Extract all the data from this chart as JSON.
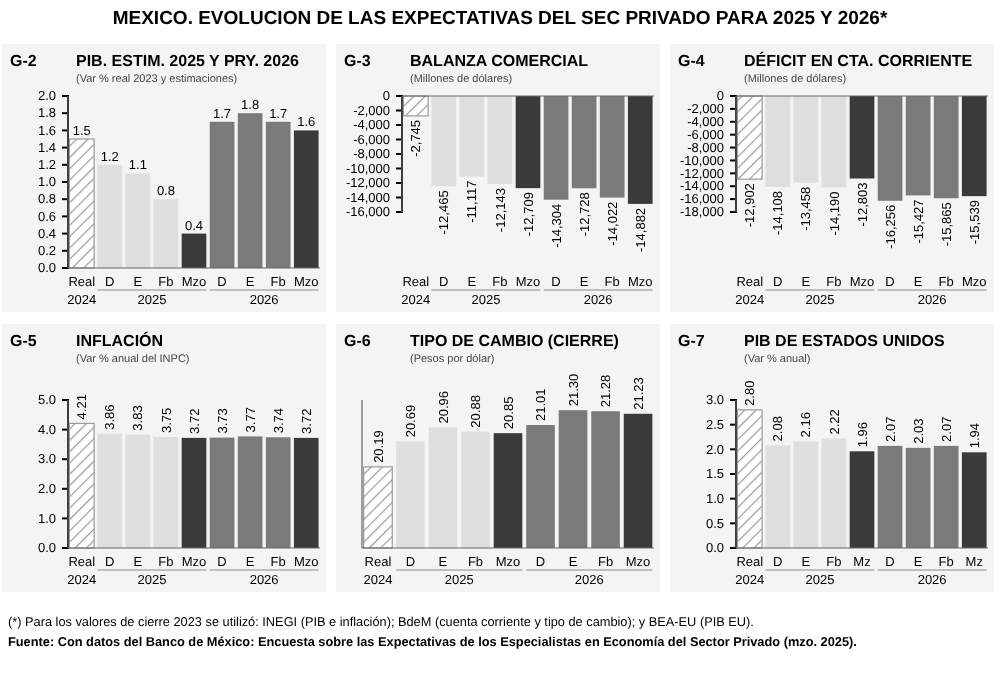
{
  "chart_data": [
    {
      "type": "other",
      "title": "MEXICO. EVOLUCION DE LAS EXPECTATIVAS DEL SEC PRIVADO PARA 2025 Y 2026*",
      "annotations": [
        "(*) Para los valores de cierre 2023 se utilizó: INEGI (PIB e inflación); BdeM (cuenta corriente y tipo de cambio); y BEA-EU (PIB EU).",
        "Fuente: Con datos del Banco de México: Encuesta sobre las Expectativas de los Especialistas en Economía del Sector Privado (mzo. 2025)."
      ]
    },
    {
      "type": "bar",
      "title": "PIB. ESTIM. 2025 Y PRY. 2026",
      "subtitle": "(Var % real 2023 y estimaciones)",
      "annotations": [
        "G-2",
        "2024",
        "2025",
        "2026"
      ],
      "categories": [
        "Real",
        "D",
        "E",
        "Fb",
        "Mzo",
        "D",
        "E",
        "Fb",
        "Mzo"
      ],
      "values": [
        1.5,
        1.2,
        1.1,
        0.8,
        0.4,
        1.7,
        1.8,
        1.7,
        1.6
      ],
      "value_labels": [
        "1.5",
        "1.2",
        "1.1",
        "0.8",
        "0.4",
        "1.7",
        "1.8",
        "1.7",
        "1.6"
      ],
      "colors": [
        "#9a9a9a",
        "#dedede",
        "#dedede",
        "#dedede",
        "#3a3a3a",
        "#7a7a7a",
        "#7a7a7a",
        "#7a7a7a",
        "#3a3a3a"
      ],
      "ylim": [
        0,
        2
      ],
      "yticks": [
        {
          "value": 0,
          "label": "0.0"
        },
        {
          "value": 0.2,
          "label": "0.2"
        },
        {
          "value": 0.4,
          "label": "0.4"
        },
        {
          "value": 0.6,
          "label": "0.6"
        },
        {
          "value": 0.8,
          "label": "0.8"
        },
        {
          "value": 1,
          "label": "1.0"
        },
        {
          "value": 1.2,
          "label": "1.2"
        },
        {
          "value": 1.4,
          "label": "1.4"
        },
        {
          "value": 1.6,
          "label": "1.6"
        },
        {
          "value": 1.8,
          "label": "1.8"
        },
        {
          "value": 2,
          "label": "2.0"
        }
      ]
    },
    {
      "type": "bar",
      "title": "BALANZA COMERCIAL",
      "subtitle": "(Millones de dólares)",
      "annotations": [
        "G-3",
        "2024",
        "2025",
        "2026"
      ],
      "categories": [
        "Real",
        "D",
        "E",
        "Fb",
        "Mzo",
        "D",
        "E",
        "Fb",
        "Mzo"
      ],
      "values": [
        -2745,
        -12465,
        -11117,
        -12143,
        -12709,
        -14304,
        -12728,
        -14022,
        -14882
      ],
      "value_labels": [
        "-2,745",
        "-12,465",
        "-11,117",
        "-12,143",
        "-12,709",
        "-14,304",
        "-12,728",
        "-14,022",
        "-14,882"
      ],
      "colors": [
        "#9a9a9a",
        "#dedede",
        "#dedede",
        "#dedede",
        "#3a3a3a",
        "#7a7a7a",
        "#7a7a7a",
        "#7a7a7a",
        "#3a3a3a"
      ],
      "ylim": [
        -16000,
        0
      ],
      "yticks": [
        {
          "value": -16000,
          "label": "-16,000"
        },
        {
          "value": -14000,
          "label": "-14,000"
        },
        {
          "value": -12000,
          "label": "-12,000"
        },
        {
          "value": -10000,
          "label": "-10,000"
        },
        {
          "value": -8000,
          "label": "-8,000"
        },
        {
          "value": -6000,
          "label": "-6,000"
        },
        {
          "value": -4000,
          "label": "-4,000"
        },
        {
          "value": -2000,
          "label": "-2,000"
        },
        0
      ]
    },
    {
      "type": "bar",
      "title": "DÉFICIT EN CTA. CORRIENTE",
      "subtitle": "(Millones de dólares)",
      "annotations": [
        "G-4",
        "2024",
        "2025",
        "2026"
      ],
      "categories": [
        "Real",
        "D",
        "E",
        "Fb",
        "Mzo",
        "D",
        "E",
        "Fb",
        "Mzo"
      ],
      "values": [
        -12902,
        -14108,
        -13458,
        -14190,
        -12803,
        -16256,
        -15427,
        -15865,
        -15539
      ],
      "value_labels": [
        "-12,902",
        "-14,108",
        "-13,458",
        "-14,190",
        "-12,803",
        "-16,256",
        "-15,427",
        "-15,865",
        "-15,539"
      ],
      "colors": [
        "#9a9a9a",
        "#dedede",
        "#dedede",
        "#dedede",
        "#3a3a3a",
        "#7a7a7a",
        "#7a7a7a",
        "#7a7a7a",
        "#3a3a3a"
      ],
      "ylim": [
        -18000,
        0
      ],
      "yticks": [
        {
          "value": -18000,
          "label": "-18,000"
        },
        {
          "value": -16000,
          "label": "-16,000"
        },
        {
          "value": -14000,
          "label": "-14,000"
        },
        {
          "value": -12000,
          "label": "-12,000"
        },
        {
          "value": -10000,
          "label": "-10,000"
        },
        {
          "value": -8000,
          "label": "-8,000"
        },
        {
          "value": -6000,
          "label": "-6,000"
        },
        {
          "value": -4000,
          "label": "-4,000"
        },
        {
          "value": -2000,
          "label": "-2,000"
        },
        0
      ]
    },
    {
      "type": "bar",
      "title": "INFLACIÓN",
      "subtitle": "(Var % anual del INPC)",
      "annotations": [
        "G-5",
        "2024",
        "2025",
        "2026"
      ],
      "categories": [
        "Real",
        "D",
        "E",
        "Fb",
        "Mzo",
        "D",
        "E",
        "Fb",
        "Mzo"
      ],
      "values": [
        4.21,
        3.86,
        3.83,
        3.75,
        3.72,
        3.73,
        3.77,
        3.74,
        3.72
      ],
      "value_labels": [
        "4.21",
        "3.86",
        "3.83",
        "3.75",
        "3.72",
        "3.73",
        "3.77",
        "3.74",
        "3.72"
      ],
      "colors": [
        "#9a9a9a",
        "#dedede",
        "#dedede",
        "#dedede",
        "#3a3a3a",
        "#7a7a7a",
        "#7a7a7a",
        "#7a7a7a",
        "#3a3a3a"
      ],
      "ylim": [
        0,
        5
      ],
      "yticks": [
        {
          "value": 0,
          "label": "0.0"
        },
        {
          "value": 1,
          "label": "1.0"
        },
        {
          "value": 2,
          "label": "2.0"
        },
        {
          "value": 3,
          "label": "3.0"
        },
        {
          "value": 4,
          "label": "4.0"
        },
        {
          "value": 5,
          "label": "5.0"
        }
      ]
    },
    {
      "type": "bar",
      "title": "TIPO DE CAMBIO (CIERRE)",
      "subtitle": "(Pesos por dólar)",
      "annotations": [
        "G-6",
        "2024",
        "2025",
        "2026"
      ],
      "categories": [
        "Real",
        "D",
        "E",
        "Fb",
        "Mzo",
        "D",
        "E",
        "Fb",
        "Mzo"
      ],
      "values": [
        20.19,
        20.69,
        20.96,
        20.88,
        20.85,
        21.01,
        21.3,
        21.28,
        21.23
      ],
      "value_labels": [
        "20.19",
        "20.69",
        "20.96",
        "20.88",
        "20.85",
        "21.01",
        "21.30",
        "21.28",
        "21.23"
      ],
      "colors": [
        "#9a9a9a",
        "#dedede",
        "#dedede",
        "#dedede",
        "#3a3a3a",
        "#7a7a7a",
        "#7a7a7a",
        "#7a7a7a",
        "#3a3a3a"
      ],
      "ylim": [
        18.6,
        21.5
      ],
      "tick_labels": "x"
    },
    {
      "type": "bar",
      "title": "PIB DE ESTADOS UNIDOS",
      "subtitle": "(Var % anual)",
      "annotations": [
        "G-7",
        "2024",
        "2025",
        "2026"
      ],
      "categories": [
        "Real",
        "D",
        "E",
        "Fb",
        "Mz",
        "D",
        "E",
        "Fb",
        "Mz"
      ],
      "values": [
        2.8,
        2.08,
        2.16,
        2.22,
        1.96,
        2.07,
        2.03,
        2.07,
        1.94
      ],
      "value_labels": [
        "2.80",
        "2.08",
        "2.16",
        "2.22",
        "1.96",
        "2.07",
        "2.03",
        "2.07",
        "1.94"
      ],
      "colors": [
        "#9a9a9a",
        "#dedede",
        "#dedede",
        "#dedede",
        "#3a3a3a",
        "#7a7a7a",
        "#7a7a7a",
        "#7a7a7a",
        "#3a3a3a"
      ],
      "ylim": [
        0,
        3
      ],
      "yticks": [
        {
          "value": 0,
          "label": "0.0"
        },
        {
          "value": 0.5,
          "label": "0.5"
        },
        {
          "value": 1,
          "label": "1.0"
        },
        {
          "value": 1.5,
          "label": "1.5"
        },
        {
          "value": 2,
          "label": "2.0"
        },
        {
          "value": 2.5,
          "label": "2.5"
        },
        {
          "value": 3,
          "label": "3.0"
        }
      ]
    }
  ]
}
